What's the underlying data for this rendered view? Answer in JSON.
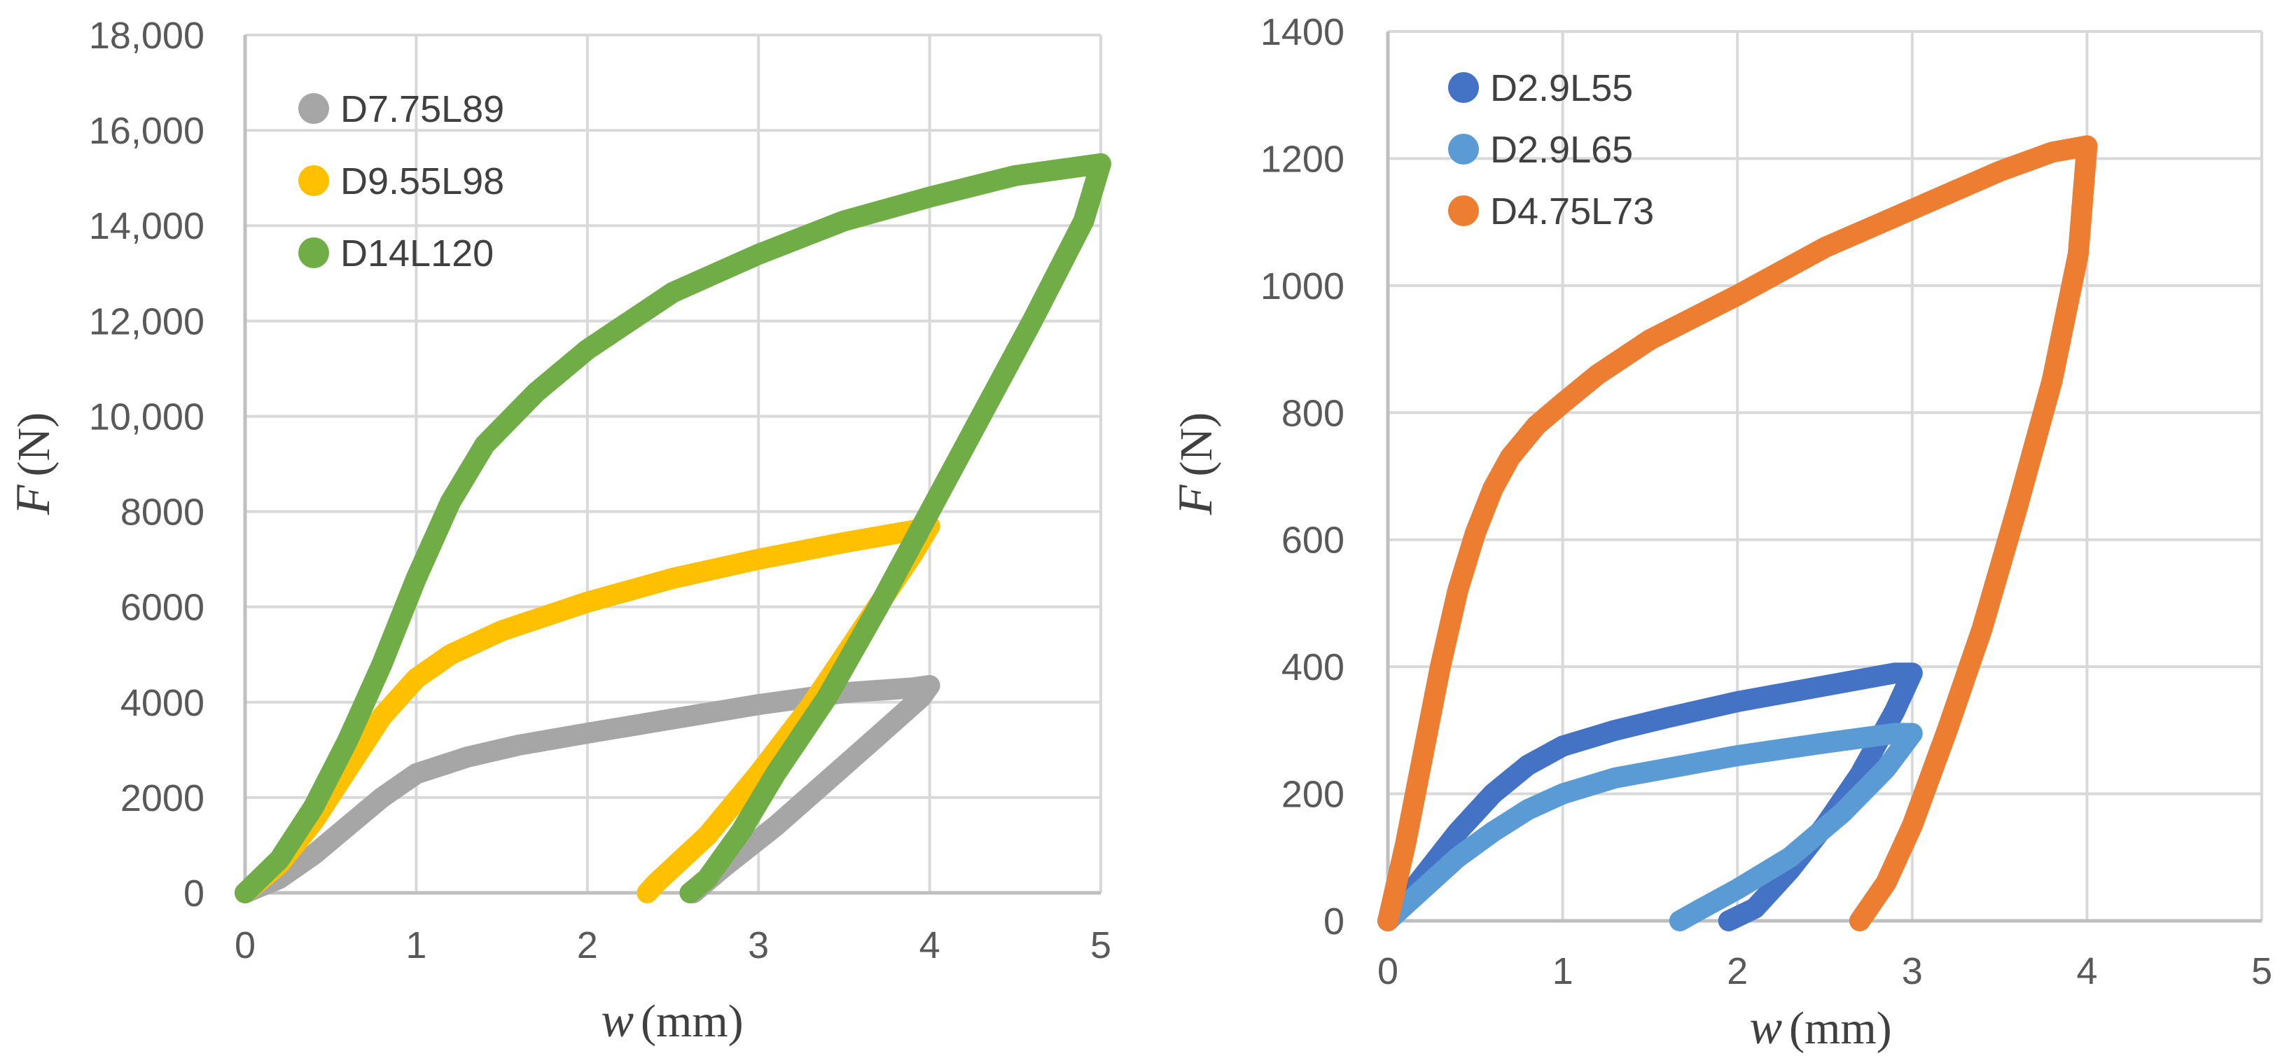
{
  "chart_data": [
    {
      "type": "line",
      "xlabel": "w",
      "xlabel_unit": "(mm)",
      "ylabel": "F",
      "ylabel_unit": "(N)",
      "xlim": [
        0,
        5
      ],
      "ylim": [
        0,
        18000
      ],
      "xticks": [
        0,
        1,
        2,
        3,
        4,
        5
      ],
      "xtick_labels": [
        "0",
        "1",
        "2",
        "3",
        "4",
        "5"
      ],
      "yticks": [
        0,
        2000,
        4000,
        6000,
        8000,
        10000,
        12000,
        14000,
        16000,
        18000
      ],
      "ytick_labels": [
        "0",
        "2000",
        "4000",
        "6000",
        "8000",
        "10,000",
        "12,000",
        "14,000",
        "16,000",
        "18,000"
      ],
      "grid": true,
      "legend_position": "top-left",
      "series": [
        {
          "name": "D7.75L89",
          "color": "#a6a6a6",
          "x": [
            0,
            0.2,
            0.4,
            0.6,
            0.8,
            1.0,
            1.3,
            1.6,
            2.0,
            2.5,
            3.0,
            3.5,
            3.9,
            4.0,
            3.95,
            3.7,
            3.4,
            3.1,
            2.8,
            2.62
          ],
          "y": [
            0,
            300,
            800,
            1400,
            2000,
            2500,
            2850,
            3100,
            3350,
            3650,
            3950,
            4200,
            4300,
            4350,
            4100,
            3300,
            2350,
            1400,
            550,
            0
          ]
        },
        {
          "name": "D9.55L98",
          "color": "#ffc000",
          "x": [
            0,
            0.2,
            0.4,
            0.6,
            0.8,
            1.0,
            1.2,
            1.5,
            2.0,
            2.5,
            3.0,
            3.5,
            3.9,
            4.0,
            3.9,
            3.6,
            3.3,
            3.0,
            2.7,
            2.4,
            2.35
          ],
          "y": [
            0,
            600,
            1500,
            2600,
            3700,
            4500,
            5000,
            5500,
            6100,
            6600,
            7000,
            7350,
            7600,
            7700,
            7100,
            5500,
            3900,
            2500,
            1200,
            200,
            0
          ]
        },
        {
          "name": "D14L120",
          "color": "#70ad47",
          "x": [
            0,
            0.2,
            0.4,
            0.6,
            0.8,
            1.0,
            1.2,
            1.4,
            1.7,
            2.0,
            2.5,
            3.0,
            3.5,
            4.0,
            4.5,
            4.8,
            5.0,
            4.9,
            4.6,
            4.3,
            4.0,
            3.7,
            3.4,
            3.1,
            2.9,
            2.7,
            2.6
          ],
          "y": [
            0,
            700,
            1800,
            3200,
            4800,
            6600,
            8200,
            9400,
            10500,
            11400,
            12600,
            13400,
            14100,
            14600,
            15050,
            15200,
            15300,
            14100,
            12000,
            10000,
            8000,
            6000,
            4100,
            2500,
            1300,
            300,
            0
          ]
        }
      ],
      "legend_entries": [
        "D7.75L89",
        "D9.55L98",
        "D14L120"
      ]
    },
    {
      "type": "line",
      "xlabel": "w",
      "xlabel_unit": "(mm)",
      "ylabel": "F",
      "ylabel_unit": "(N)",
      "xlim": [
        0,
        5
      ],
      "ylim": [
        0,
        1400
      ],
      "xticks": [
        0,
        1,
        2,
        3,
        4,
        5
      ],
      "xtick_labels": [
        "0",
        "1",
        "2",
        "3",
        "4",
        "5"
      ],
      "yticks": [
        0,
        200,
        400,
        600,
        800,
        1000,
        1200,
        1400
      ],
      "ytick_labels": [
        "0",
        "200",
        "400",
        "600",
        "800",
        "1000",
        "1200",
        "1400"
      ],
      "grid": true,
      "legend_position": "top-left",
      "series": [
        {
          "name": "D2.9L55",
          "color": "#4472c4",
          "x": [
            0,
            0.2,
            0.4,
            0.6,
            0.8,
            1.0,
            1.3,
            1.6,
            2.0,
            2.5,
            2.9,
            3.0,
            2.9,
            2.7,
            2.5,
            2.3,
            2.1,
            1.95
          ],
          "y": [
            0,
            70,
            140,
            200,
            245,
            275,
            300,
            320,
            345,
            370,
            390,
            390,
            330,
            230,
            150,
            80,
            20,
            0
          ]
        },
        {
          "name": "D2.9L65",
          "color": "#5b9bd5",
          "x": [
            0,
            0.2,
            0.4,
            0.6,
            0.8,
            1.0,
            1.3,
            1.6,
            2.0,
            2.5,
            2.9,
            3.0,
            2.85,
            2.6,
            2.3,
            2.0,
            1.8,
            1.67
          ],
          "y": [
            0,
            50,
            100,
            140,
            175,
            200,
            225,
            240,
            260,
            280,
            295,
            295,
            240,
            170,
            100,
            50,
            20,
            0
          ]
        },
        {
          "name": "D4.75L73",
          "color": "#ed7d31",
          "x": [
            0,
            0.1,
            0.2,
            0.3,
            0.4,
            0.5,
            0.6,
            0.7,
            0.85,
            1.0,
            1.2,
            1.5,
            2.0,
            2.5,
            3.0,
            3.5,
            3.8,
            4.0,
            3.95,
            3.8,
            3.6,
            3.4,
            3.2,
            3.0,
            2.85,
            2.7
          ],
          "y": [
            0,
            120,
            260,
            400,
            520,
            610,
            680,
            730,
            780,
            815,
            860,
            915,
            985,
            1060,
            1120,
            1180,
            1210,
            1220,
            1050,
            850,
            650,
            460,
            300,
            150,
            60,
            0
          ]
        }
      ],
      "legend_entries": [
        "D2.9L55",
        "D2.9L65",
        "D4.75L73"
      ]
    }
  ]
}
